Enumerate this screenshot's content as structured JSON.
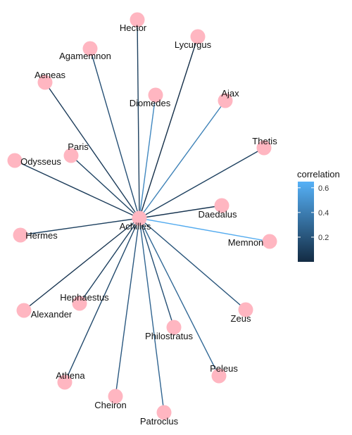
{
  "chart_data": {
    "type": "network",
    "center": "Achilles",
    "nodes": [
      "Hector",
      "Lycurgus",
      "Agamemnon",
      "Aeneas",
      "Diomedes",
      "Ajax",
      "Thetis",
      "Paris",
      "Odysseus",
      "Daedalus",
      "Achilles",
      "Memnon",
      "Hermes",
      "Hephaestus",
      "Zeus",
      "Alexander",
      "Philostratus",
      "Peleus",
      "Athena",
      "Cheiron",
      "Patroclus"
    ],
    "edges": [
      {
        "from": "Achilles",
        "to": "Hector",
        "correlation": 0.1
      },
      {
        "from": "Achilles",
        "to": "Lycurgus",
        "correlation": 0.02
      },
      {
        "from": "Achilles",
        "to": "Agamemnon",
        "correlation": 0.18
      },
      {
        "from": "Achilles",
        "to": "Aeneas",
        "correlation": 0.08
      },
      {
        "from": "Achilles",
        "to": "Diomedes",
        "correlation": 0.45
      },
      {
        "from": "Achilles",
        "to": "Ajax",
        "correlation": 0.42
      },
      {
        "from": "Achilles",
        "to": "Thetis",
        "correlation": 0.1
      },
      {
        "from": "Achilles",
        "to": "Paris",
        "correlation": 0.12
      },
      {
        "from": "Achilles",
        "to": "Odysseus",
        "correlation": 0.08
      },
      {
        "from": "Achilles",
        "to": "Daedalus",
        "correlation": 0.05
      },
      {
        "from": "Achilles",
        "to": "Memnon",
        "correlation": 0.62
      },
      {
        "from": "Achilles",
        "to": "Hermes",
        "correlation": 0.1
      },
      {
        "from": "Achilles",
        "to": "Hephaestus",
        "correlation": 0.1
      },
      {
        "from": "Achilles",
        "to": "Zeus",
        "correlation": 0.2
      },
      {
        "from": "Achilles",
        "to": "Alexander",
        "correlation": 0.05
      },
      {
        "from": "Achilles",
        "to": "Philostratus",
        "correlation": 0.18
      },
      {
        "from": "Achilles",
        "to": "Peleus",
        "correlation": 0.3
      },
      {
        "from": "Achilles",
        "to": "Athena",
        "correlation": 0.15
      },
      {
        "from": "Achilles",
        "to": "Cheiron",
        "correlation": 0.22
      },
      {
        "from": "Achilles",
        "to": "Patroclus",
        "correlation": 0.28
      }
    ],
    "legend": {
      "title": "correlation",
      "ticks": [
        "0.2",
        "0.4",
        "0.6"
      ],
      "tick_values": [
        0.2,
        0.4,
        0.6
      ],
      "range": [
        0.0,
        0.65
      ],
      "placement": "right"
    },
    "colors": {
      "low": "#132b43",
      "high": "#56b1f7",
      "node": "#ffb6c1"
    }
  }
}
